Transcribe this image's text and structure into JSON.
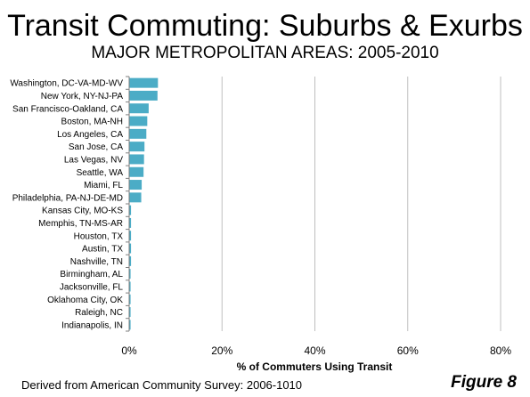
{
  "header": {
    "title": "Transit Commuting: Suburbs & Exurbs",
    "subtitle": "MAJOR METROPOLITAN AREAS: 2005-2010"
  },
  "footer": {
    "source": "Derived from American Community Survey: 2006-1010",
    "figure": "Figure 8"
  },
  "colors": {
    "bar": "#4BACC6",
    "grid": "#BFBFBF",
    "axis": "#7F7F7F"
  },
  "chart_data": {
    "type": "bar",
    "orientation": "horizontal",
    "categories": [
      "Washington, DC-VA-MD-WV",
      "New York, NY-NJ-PA",
      "San Francisco-Oakland, CA",
      "Boston, MA-NH",
      "Los Angeles, CA",
      "San Jose, CA",
      "Las Vegas, NV",
      "Seattle, WA",
      "Miami, FL",
      "Philadelphia, PA-NJ-DE-MD",
      "Kansas City, MO-KS",
      "Memphis, TN-MS-AR",
      "Houston, TX",
      "Austin, TX",
      "Nashville, TN",
      "Birmingham, AL",
      "Jacksonville, FL",
      "Oklahoma City, OK",
      "Raleigh, NC",
      "Indianapolis, IN"
    ],
    "values": [
      6.2,
      6.1,
      4.2,
      3.9,
      3.7,
      3.3,
      3.2,
      3.1,
      2.7,
      2.6,
      0.4,
      0.4,
      0.4,
      0.4,
      0.4,
      0.3,
      0.3,
      0.3,
      0.3,
      0.3
    ],
    "xlabel": "% of Commuters Using Transit",
    "ylabel": "",
    "xlim": [
      0,
      80
    ],
    "xticks": [
      "0%",
      "20%",
      "40%",
      "60%",
      "80%"
    ],
    "grid": true,
    "legend": "none"
  }
}
